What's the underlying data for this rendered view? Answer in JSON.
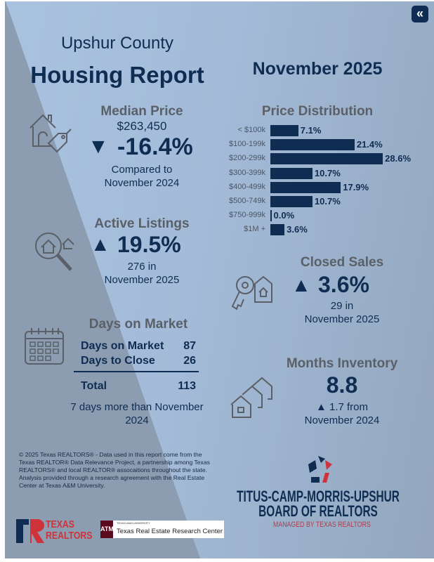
{
  "header": {
    "county": "Upshur County",
    "title": "Housing Report",
    "month": "November 2025",
    "back_label": "«"
  },
  "median_price": {
    "label": "Median Price",
    "value": "$263,450",
    "change": "-16.4%",
    "direction": "▼",
    "compare_line1": "Compared to",
    "compare_line2": "November 2024"
  },
  "active_listings": {
    "label": "Active Listings",
    "change": "19.5%",
    "direction": "▲",
    "line1": "276 in",
    "line2": "November 2025"
  },
  "days_on_market": {
    "label": "Days on Market",
    "rows": [
      {
        "label": "Days on Market",
        "value": "87"
      },
      {
        "label": "Days to Close",
        "value": "26"
      }
    ],
    "total_label": "Total",
    "total_value": "113",
    "note": "7 days more than November 2024"
  },
  "closed_sales": {
    "label": "Closed Sales",
    "change": "3.6%",
    "direction": "▲",
    "line1": "29 in",
    "line2": "November 2025"
  },
  "months_inventory": {
    "label": "Months Inventory",
    "value": "8.8",
    "change": "▲ 1.7 from",
    "line2": "November 2024"
  },
  "chart_data": {
    "type": "bar",
    "title": "Price Distribution",
    "categories": [
      "< $100k",
      "$100-199k",
      "$200-299k",
      "$300-399k",
      "$400-499k",
      "$500-749k",
      "$750-999k",
      "$1M +"
    ],
    "values": [
      7.1,
      21.4,
      28.6,
      10.7,
      17.9,
      10.7,
      0.0,
      3.6
    ],
    "labels": [
      "7.1%",
      "21.4%",
      "28.6%",
      "10.7%",
      "17.9%",
      "10.7%",
      "0.0%",
      "3.6%"
    ]
  },
  "footer": {
    "disclaimer": "© 2025 Texas REALTORS® - Data used in this report come from the Texas REALTOR® Data Relevance Project, a partnership among Texas REALTORS® and local REALTOR® assocaitions throughout the state. Analysis provided through a research agreement with the Real Estate Center at Texas A&M University.",
    "texas_realtors_logo": "TEXAS REALTORS",
    "tamu_small": "TEXAS A&M UNIVERSITY",
    "tamu_center": "Texas Real Estate Research Center",
    "board_line1": "TITUS-CAMP-MORRIS-UPSHUR",
    "board_line2": "BOARD OF REALTORS",
    "board_line3": "MANAGED BY TEXAS REALTORS"
  },
  "colors": {
    "navy": "#0f2d52",
    "red": "#d0323c",
    "grey": "#5b6068"
  }
}
